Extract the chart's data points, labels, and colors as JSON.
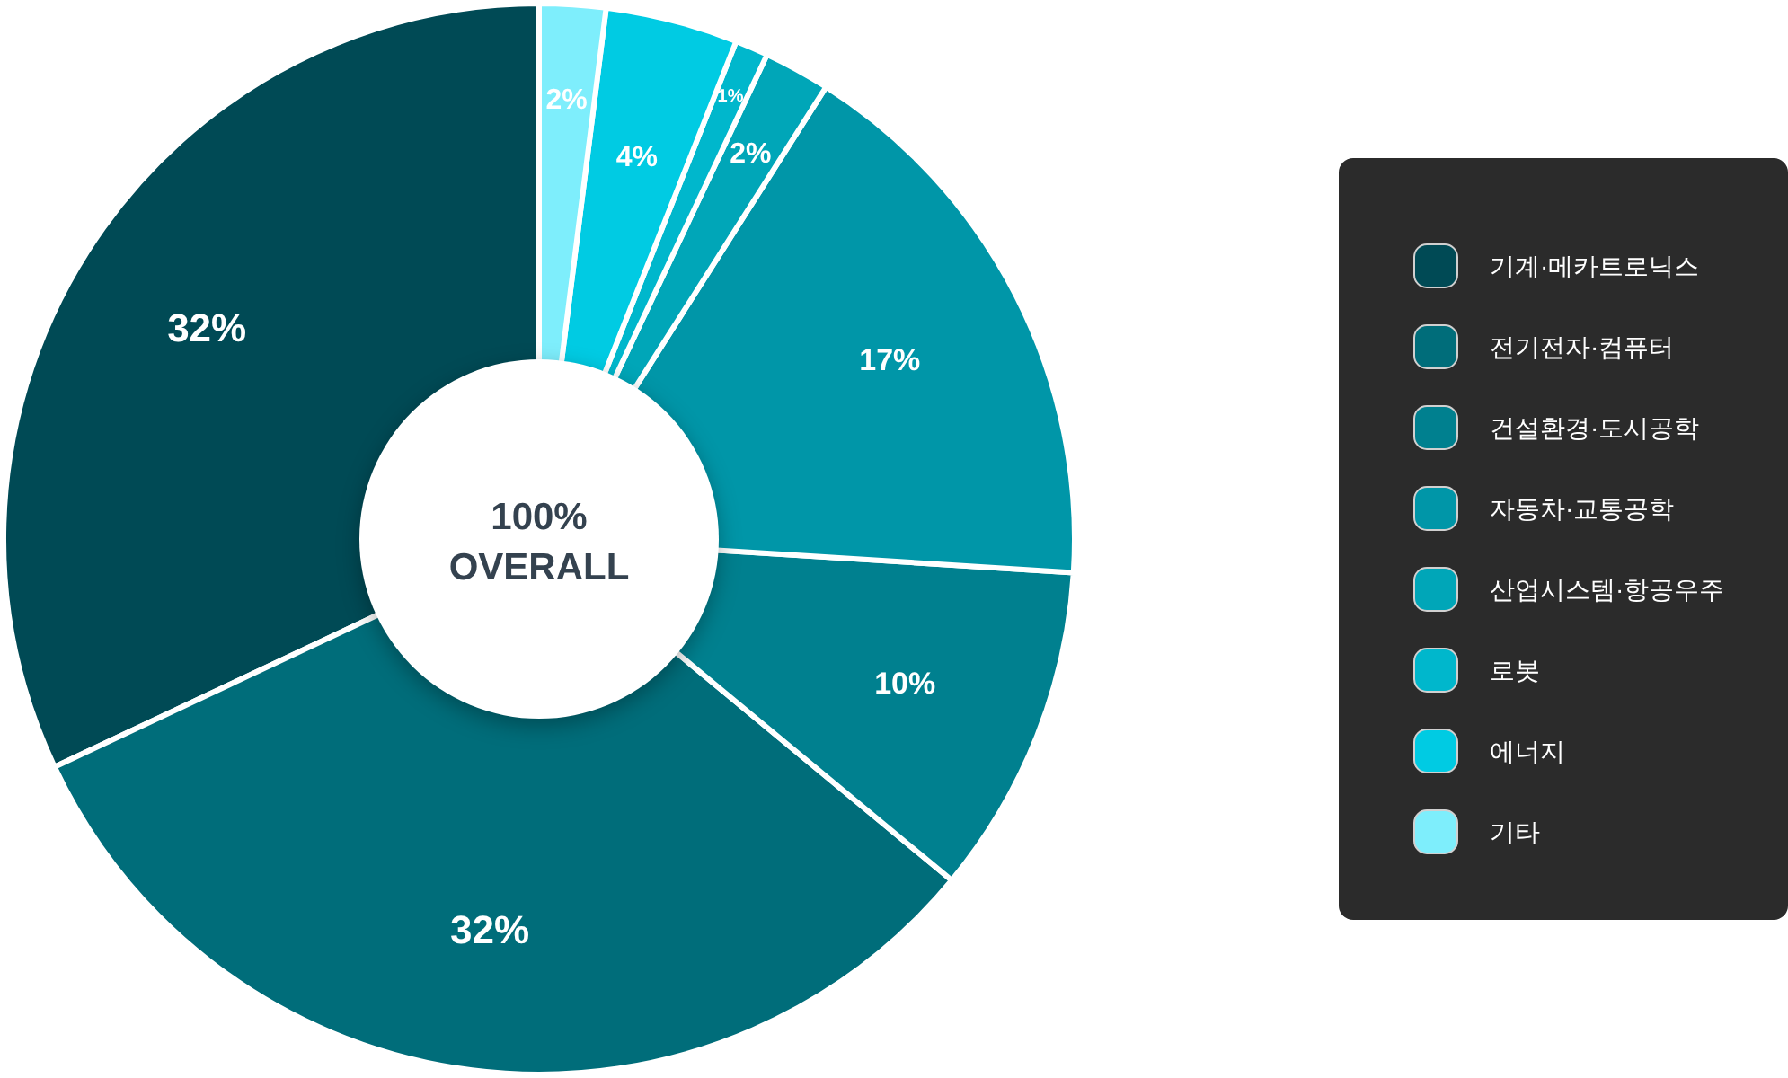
{
  "chart_data": {
    "type": "donut",
    "categories": [
      "기계·메카트로닉스",
      "전기전자·컴퓨터",
      "건설환경·도시공학",
      "자동차·교통공학",
      "산업시스템·항공우주",
      "로봇",
      "에너지",
      "기타"
    ],
    "values": [
      32,
      32,
      10,
      17,
      2,
      1,
      4,
      2
    ],
    "value_labels": [
      "32%",
      "32%",
      "10%",
      "17%",
      "2%",
      "1%",
      "4%",
      "2%"
    ],
    "colors": [
      "#004a55",
      "#006d7a",
      "#00808f",
      "#0096a8",
      "#00a6b8",
      "#00b7cc",
      "#00cbe3",
      "#7eeefc"
    ],
    "annotations": [
      "100%",
      "OVERALL"
    ],
    "legend": "right"
  }
}
